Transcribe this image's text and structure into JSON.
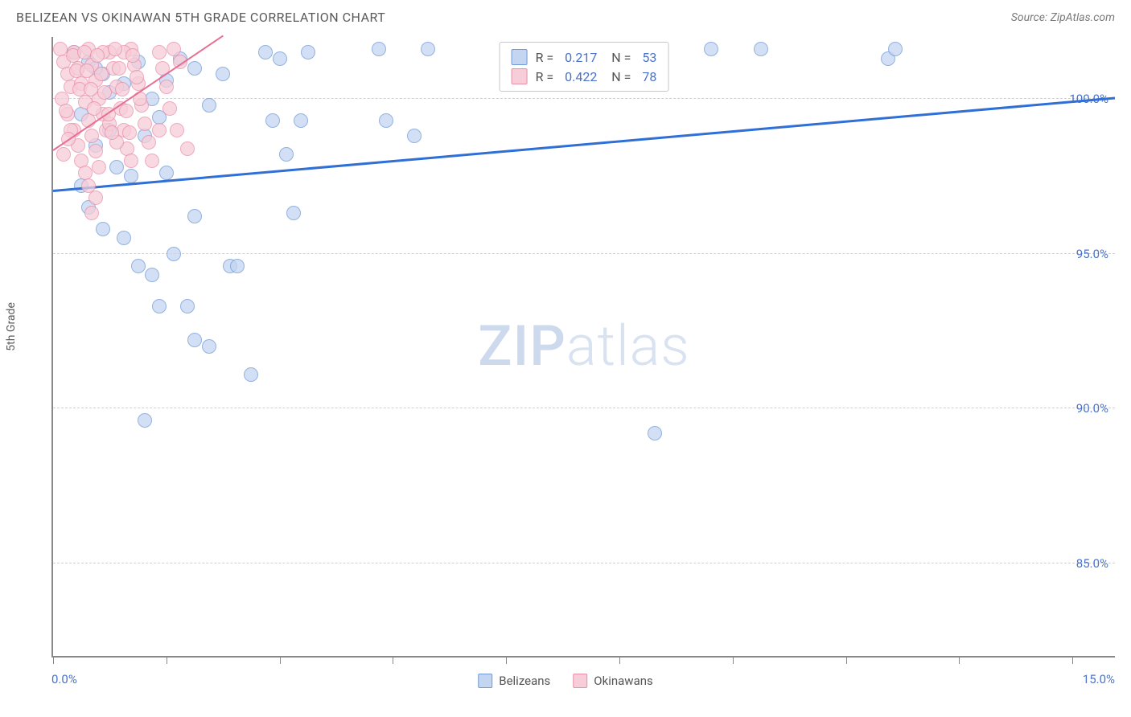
{
  "header": {
    "title": "BELIZEAN VS OKINAWAN 5TH GRADE CORRELATION CHART",
    "source_prefix": "Source: ",
    "source_name": "ZipAtlas.com"
  },
  "watermark": {
    "bold": "ZIP",
    "light": "atlas"
  },
  "chart": {
    "type": "scatter",
    "ylabel": "5th Grade",
    "xlim": [
      0.0,
      15.0
    ],
    "ylim": [
      82.0,
      102.0
    ],
    "xtick_positions": [
      0,
      1.6,
      3.2,
      4.8,
      6.4,
      8.0,
      9.6,
      11.2,
      12.8,
      14.4
    ],
    "xaxis_labels": {
      "left": "0.0%",
      "right": "15.0%"
    },
    "ygrid": [
      {
        "value": 100.0,
        "label": "100.0%"
      },
      {
        "value": 95.0,
        "label": "95.0%"
      },
      {
        "value": 90.0,
        "label": "90.0%"
      },
      {
        "value": 85.0,
        "label": "85.0%"
      }
    ],
    "grid_color": "#d8d8d8",
    "background_color": "#ffffff",
    "point_radius": 9,
    "point_stroke_width": 1.5,
    "series": [
      {
        "name": "Belizeans",
        "color_fill": "#c3d5f1",
        "color_stroke": "#6f9ad8",
        "R": "0.217",
        "N": "53",
        "trend": {
          "x1": 0.0,
          "y1": 97.0,
          "x2": 15.0,
          "y2": 100.0,
          "color": "#2f6fd6",
          "width": 2.5
        },
        "points": [
          [
            0.3,
            101.5
          ],
          [
            0.5,
            101.2
          ],
          [
            0.7,
            100.8
          ],
          [
            0.4,
            99.5
          ],
          [
            0.6,
            98.5
          ],
          [
            0.8,
            99.0
          ],
          [
            0.4,
            97.2
          ],
          [
            0.9,
            97.8
          ],
          [
            1.1,
            97.5
          ],
          [
            0.5,
            96.5
          ],
          [
            0.7,
            95.8
          ],
          [
            1.3,
            98.8
          ],
          [
            1.5,
            99.4
          ],
          [
            1.6,
            97.6
          ],
          [
            1.0,
            95.5
          ],
          [
            1.2,
            94.6
          ],
          [
            1.4,
            94.3
          ],
          [
            1.5,
            93.3
          ],
          [
            1.7,
            95.0
          ],
          [
            1.9,
            93.3
          ],
          [
            2.0,
            96.2
          ],
          [
            2.0,
            92.2
          ],
          [
            2.2,
            92.0
          ],
          [
            2.5,
            94.6
          ],
          [
            2.6,
            94.6
          ],
          [
            1.3,
            89.6
          ],
          [
            2.8,
            91.1
          ],
          [
            3.0,
            101.5
          ],
          [
            3.1,
            99.3
          ],
          [
            3.2,
            101.3
          ],
          [
            3.3,
            98.2
          ],
          [
            3.4,
            96.3
          ],
          [
            3.5,
            99.3
          ],
          [
            3.6,
            101.5
          ],
          [
            4.6,
            101.6
          ],
          [
            4.7,
            99.3
          ],
          [
            5.1,
            98.8
          ],
          [
            5.3,
            101.6
          ],
          [
            8.5,
            89.2
          ],
          [
            9.3,
            101.6
          ],
          [
            10.0,
            101.6
          ],
          [
            11.8,
            101.3
          ],
          [
            11.9,
            101.6
          ],
          [
            0.6,
            101.0
          ],
          [
            0.8,
            100.2
          ],
          [
            1.0,
            100.5
          ],
          [
            1.2,
            101.2
          ],
          [
            1.4,
            100.0
          ],
          [
            1.6,
            100.6
          ],
          [
            1.8,
            101.3
          ],
          [
            2.2,
            99.8
          ],
          [
            2.0,
            101.0
          ],
          [
            2.4,
            100.8
          ]
        ]
      },
      {
        "name": "Okinawans",
        "color_fill": "#f6cdd8",
        "color_stroke": "#e98fa8",
        "R": "0.422",
        "N": "78",
        "trend": {
          "x1": 0.0,
          "y1": 98.3,
          "x2": 2.4,
          "y2": 102.0,
          "color": "#e86f93",
          "width": 2
        },
        "points": [
          [
            0.1,
            101.6
          ],
          [
            0.15,
            101.2
          ],
          [
            0.2,
            100.8
          ],
          [
            0.25,
            100.4
          ],
          [
            0.3,
            101.5
          ],
          [
            0.35,
            101.0
          ],
          [
            0.4,
            100.5
          ],
          [
            0.45,
            99.9
          ],
          [
            0.5,
            101.6
          ],
          [
            0.55,
            101.1
          ],
          [
            0.6,
            100.6
          ],
          [
            0.65,
            100.0
          ],
          [
            0.7,
            99.5
          ],
          [
            0.75,
            99.0
          ],
          [
            0.8,
            101.5
          ],
          [
            0.85,
            101.0
          ],
          [
            0.9,
            100.4
          ],
          [
            0.95,
            99.7
          ],
          [
            1.0,
            99.0
          ],
          [
            1.05,
            98.4
          ],
          [
            1.1,
            101.6
          ],
          [
            1.15,
            101.1
          ],
          [
            1.2,
            100.5
          ],
          [
            1.25,
            99.8
          ],
          [
            1.3,
            99.2
          ],
          [
            1.35,
            98.6
          ],
          [
            1.4,
            98.0
          ],
          [
            0.3,
            99.0
          ],
          [
            0.35,
            98.5
          ],
          [
            0.4,
            98.0
          ],
          [
            0.45,
            97.6
          ],
          [
            0.5,
            99.3
          ],
          [
            0.55,
            98.8
          ],
          [
            0.6,
            98.3
          ],
          [
            0.65,
            97.8
          ],
          [
            0.7,
            101.5
          ],
          [
            0.2,
            99.5
          ],
          [
            0.25,
            99.0
          ],
          [
            0.12,
            100.0
          ],
          [
            0.18,
            99.6
          ],
          [
            0.8,
            99.2
          ],
          [
            0.9,
            98.6
          ],
          [
            1.0,
            101.5
          ],
          [
            1.1,
            98.0
          ],
          [
            1.5,
            101.5
          ],
          [
            1.55,
            101.0
          ],
          [
            1.6,
            100.4
          ],
          [
            1.65,
            99.7
          ],
          [
            1.7,
            101.6
          ],
          [
            1.75,
            99.0
          ],
          [
            1.8,
            101.2
          ],
          [
            1.9,
            98.4
          ],
          [
            1.5,
            99.0
          ],
          [
            0.5,
            97.2
          ],
          [
            0.6,
            96.8
          ],
          [
            0.55,
            96.3
          ],
          [
            0.15,
            98.2
          ],
          [
            0.22,
            98.7
          ],
          [
            0.28,
            101.4
          ],
          [
            0.33,
            100.9
          ],
          [
            0.38,
            100.3
          ],
          [
            0.44,
            101.5
          ],
          [
            0.48,
            100.9
          ],
          [
            0.53,
            100.3
          ],
          [
            0.58,
            99.7
          ],
          [
            0.63,
            101.4
          ],
          [
            0.68,
            100.8
          ],
          [
            0.73,
            100.2
          ],
          [
            0.78,
            99.5
          ],
          [
            0.83,
            98.9
          ],
          [
            0.88,
            101.6
          ],
          [
            0.93,
            101.0
          ],
          [
            0.98,
            100.3
          ],
          [
            1.03,
            99.6
          ],
          [
            1.08,
            98.9
          ],
          [
            1.13,
            101.4
          ],
          [
            1.18,
            100.7
          ],
          [
            1.23,
            100.0
          ]
        ]
      }
    ],
    "legend": {
      "items": [
        {
          "label": "Belizeans",
          "fill": "#c3d5f1",
          "stroke": "#6f9ad8"
        },
        {
          "label": "Okinawans",
          "fill": "#f6cdd8",
          "stroke": "#e98fa8"
        }
      ]
    }
  }
}
